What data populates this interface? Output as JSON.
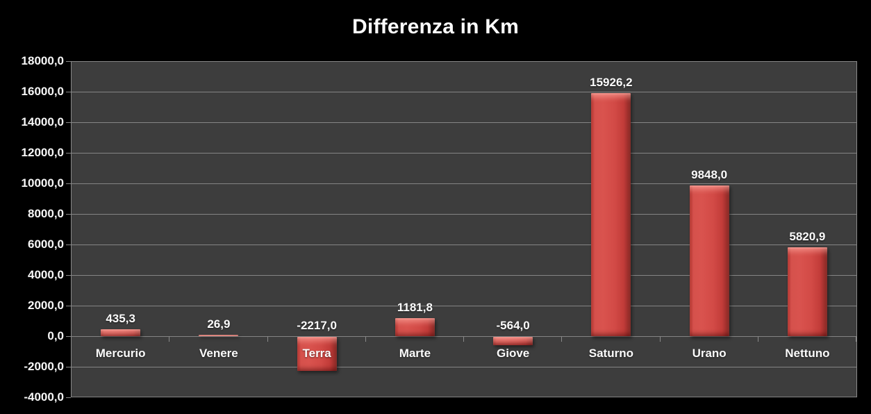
{
  "chart_data": {
    "type": "bar",
    "title": "Differenza in Km",
    "categories": [
      "Mercurio",
      "Venere",
      "Terra",
      "Marte",
      "Giove",
      "Saturno",
      "Urano",
      "Nettuno"
    ],
    "values": [
      435.3,
      26.9,
      -2217.0,
      1181.8,
      -564.0,
      15926.2,
      9848.0,
      5820.9
    ],
    "value_labels": [
      "435,3",
      "26,9",
      "-2217,0",
      "1181,8",
      "-564,0",
      "15926,2",
      "9848,0",
      "5820,9"
    ],
    "xlabel": "",
    "ylabel": "",
    "ylim": [
      -4000,
      18000
    ],
    "ytick_step": 2000,
    "ytick_labels": [
      "18000,0",
      "16000,0",
      "14000,0",
      "12000,0",
      "10000,0",
      "8000,0",
      "6000,0",
      "4000,0",
      "2000,0",
      "0,0",
      "-2000,0",
      "-4000,0"
    ],
    "grid": true,
    "legend_position": "none",
    "colors": {
      "background": "#000000",
      "plot_background": "#3d3d3d",
      "gridline": "#858585",
      "bar_fill": "#d24a46",
      "bar_highlight": "#e8726b",
      "bar_dark_edge": "#8e2b28",
      "text": "#ffffff"
    }
  }
}
